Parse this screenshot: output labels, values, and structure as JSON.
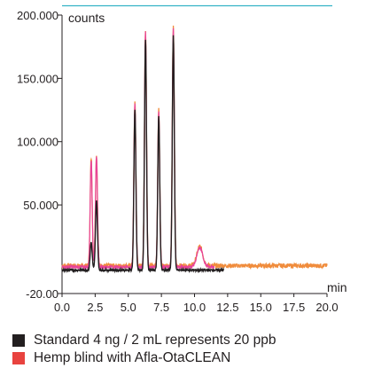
{
  "chart_data": {
    "type": "line",
    "title": "",
    "xlabel": "min",
    "ylabel": "counts",
    "xlim": [
      0,
      20
    ],
    "ylim": [
      -20000,
      200000
    ],
    "x_ticks": [
      0,
      2.5,
      5,
      7.5,
      10,
      12.5,
      15,
      17.5,
      20
    ],
    "x_tick_labels": [
      "0.0",
      "2.5",
      "5.0",
      "7.5",
      "10.0",
      "12.5",
      "15.0",
      "17.5",
      "20.0"
    ],
    "y_ticks": [
      -20000,
      50000,
      100000,
      150000,
      200000
    ],
    "y_tick_labels": [
      "-20.00",
      "50.000",
      "100.000",
      "150.000",
      "200.000"
    ],
    "grid": false,
    "legend_position": "bottom",
    "series": [
      {
        "name": "Standard 4 ng / 2 mL represents 20 ppb",
        "color": "#231f20",
        "x_range": [
          0,
          12.2
        ],
        "baseline": -1500,
        "peaks": [
          {
            "rt": 2.2,
            "height": 22000
          },
          {
            "rt": 2.6,
            "height": 55000
          },
          {
            "rt": 5.5,
            "height": 127000
          },
          {
            "rt": 6.3,
            "height": 182000
          },
          {
            "rt": 7.3,
            "height": 121000
          },
          {
            "rt": 8.4,
            "height": 185000
          }
        ]
      },
      {
        "name": "Hemp blind with Afla-OtaCLEAN",
        "color": "#e8433f",
        "x_range": [
          0,
          20
        ],
        "baseline": 2000,
        "peaks": [
          {
            "rt": 2.2,
            "height": 85000
          },
          {
            "rt": 2.6,
            "height": 88000
          },
          {
            "rt": 5.5,
            "height": 129000
          },
          {
            "rt": 6.3,
            "height": 186000
          },
          {
            "rt": 7.3,
            "height": 123000
          },
          {
            "rt": 8.4,
            "height": 188000
          },
          {
            "rt": 10.4,
            "height": 15000
          }
        ]
      }
    ]
  },
  "legend": [
    {
      "label": "Standard 4 ng / 2 mL represents 20 ppb",
      "color": "#231f20"
    },
    {
      "label": "Hemp blind with Afla-OtaCLEAN",
      "color": "#e8433f"
    }
  ]
}
